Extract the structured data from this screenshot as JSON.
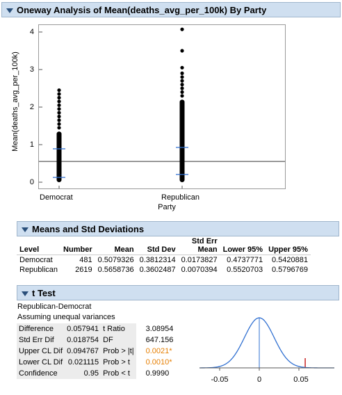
{
  "title": "Oneway Analysis of Mean(deaths_avg_per_100k) By Party",
  "plot": {
    "ylabel": "Mean(deaths_avg_per_100k)",
    "xlabel": "Party",
    "yticks": [
      "0",
      "1",
      "2",
      "3",
      "4"
    ],
    "categories": [
      "Democrat",
      "Republican"
    ]
  },
  "chart_data": {
    "type": "scatter",
    "title": "Oneway Analysis of Mean(deaths_avg_per_100k) By Party",
    "xlabel": "Party",
    "ylabel": "Mean(deaths_avg_per_100k)",
    "categories": [
      "Democrat",
      "Republican"
    ],
    "ylim": [
      -0.1,
      4.4
    ],
    "grand_mean": 0.553,
    "series": [
      {
        "name": "Democrat",
        "dense_range": [
          0.0,
          1.35
        ],
        "outliers": [
          1.45,
          1.55,
          1.65,
          1.75,
          1.85,
          1.95,
          2.05,
          2.15,
          2.25,
          2.35,
          2.45
        ],
        "mean": 0.508,
        "mean_minus_sd": 0.127,
        "mean_plus_sd": 0.889
      },
      {
        "name": "Republican",
        "dense_range": [
          0.0,
          2.2
        ],
        "outliers": [
          2.3,
          2.4,
          2.5,
          2.6,
          2.7,
          2.8,
          2.9,
          3.05,
          3.5,
          4.07
        ],
        "mean": 0.566,
        "mean_minus_sd": 0.206,
        "mean_plus_sd": 0.926
      }
    ]
  },
  "means": {
    "title": "Means and Std Deviations",
    "headers": {
      "level": "Level",
      "number": "Number",
      "mean": "Mean",
      "stddev": "Std Dev",
      "stderr_top": "Std Err",
      "stderr_bottom": "Mean",
      "lower": "Lower 95%",
      "upper": "Upper 95%"
    },
    "rows": [
      {
        "level": "Democrat",
        "number": "481",
        "mean": "0.5079326",
        "stddev": "0.3812314",
        "stderr": "0.0173827",
        "lower": "0.4737771",
        "upper": "0.5420881"
      },
      {
        "level": "Republican",
        "number": "2619",
        "mean": "0.5658736",
        "stddev": "0.3602487",
        "stderr": "0.0070394",
        "lower": "0.5520703",
        "upper": "0.5796769"
      }
    ]
  },
  "ttest": {
    "title": "t Test",
    "line1": "Republican-Democrat",
    "line2": "Assuming unequal variances",
    "stats": [
      {
        "k1": "Difference",
        "v1": "0.057941",
        "k2": "t Ratio",
        "v2": "3.08954"
      },
      {
        "k1": "Std Err Dif",
        "v1": "0.018754",
        "k2": "DF",
        "v2": "647.156"
      },
      {
        "k1": "Upper CL Dif",
        "v1": "0.094767",
        "k2": "Prob > |t|",
        "v2": "0.0021*"
      },
      {
        "k1": "Lower CL Dif",
        "v1": "0.021115",
        "k2": "Prob > t",
        "v2": "0.0010*"
      },
      {
        "k1": "Confidence",
        "v1": "0.95",
        "k2": "Prob < t",
        "v2": "0.9990"
      }
    ],
    "dist_ticks": [
      "-0.05",
      "0",
      "0.05"
    ],
    "observed_difference": 0.057941,
    "colors": {
      "curve": "#2f6fd1",
      "marker": "#c00000",
      "significant": "#e67e00"
    }
  }
}
